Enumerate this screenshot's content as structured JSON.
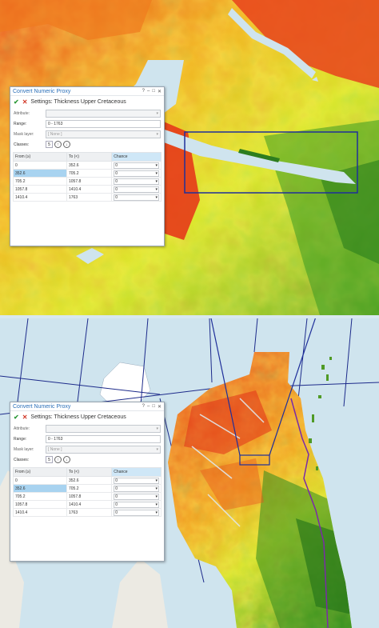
{
  "dialog": {
    "title": "Convert Numeric Proxy",
    "title_buttons": [
      "?",
      "–",
      "□",
      "✕"
    ],
    "settings_label": "Settings: Thickness Upper Cretaceous",
    "fields": {
      "attribute_label": "Attribute:",
      "range_label": "Range:",
      "range_value": "0 - 1763",
      "mask_label": "Mask layer:",
      "mask_value": "[ None ]",
      "classes_label": "Classes:",
      "classes_value": "5"
    },
    "table": {
      "headers": [
        "From (≥)",
        "To (<)",
        "Chance"
      ],
      "rows": [
        {
          "from": "0",
          "to": "352.6",
          "chance": "0"
        },
        {
          "from": "352.6",
          "to": "705.2",
          "chance": "0"
        },
        {
          "from": "705.2",
          "to": "1057.8",
          "chance": "0"
        },
        {
          "from": "1057.8",
          "to": "1410.4",
          "chance": "0"
        },
        {
          "from": "1410.4",
          "to": "1763",
          "chance": "0"
        }
      ],
      "selected_row": 1
    }
  },
  "colors": {
    "accent": "#2a6fb8",
    "zoom_box": "#1f2f9a",
    "water": "#cfe4ee",
    "high": "#e4331c",
    "mid": "#f2e521",
    "low": "#2d8a1f"
  }
}
